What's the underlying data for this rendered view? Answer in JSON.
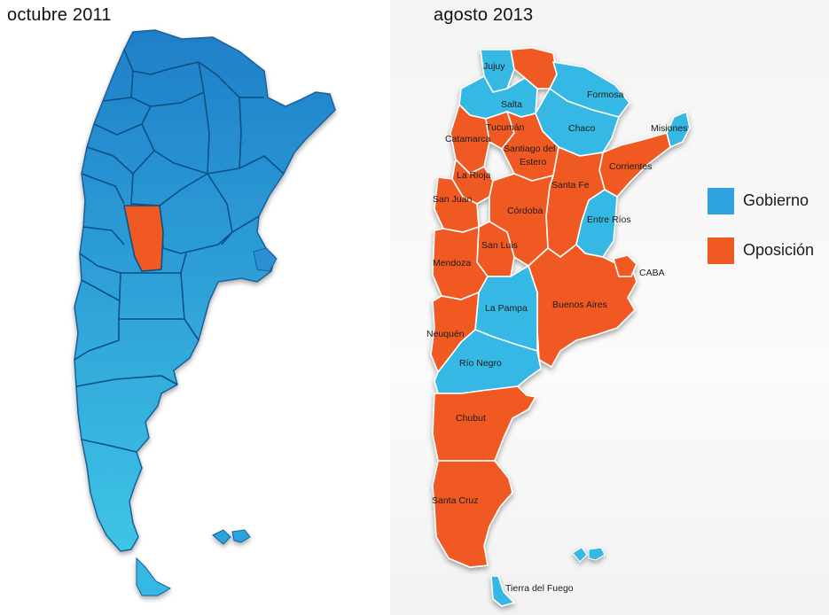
{
  "maps": {
    "left": {
      "title": "octubre 2011"
    },
    "right": {
      "title": "agosto 2013",
      "labels": {
        "jujuy": "Jujuy",
        "salta": "Salta",
        "formosa": "Formosa",
        "chaco": "Chaco",
        "misiones": "Misiones",
        "tucuman": "Tucumán",
        "catamarca": "Catamarca",
        "santiago_1": "Santiago del",
        "santiago_2": "Estero",
        "corrientes": "Corrientes",
        "la_rioja": "La Rioja",
        "santa_fe": "Santa Fe",
        "san_juan": "San Juan",
        "cordoba": "Córdoba",
        "entre_rios": "Entre Ríos",
        "san_luis": "San Luis",
        "mendoza": "Mendoza",
        "caba": "CABA",
        "la_pampa": "La Pampa",
        "buenos_aires": "Buenos Aires",
        "neuquen": "Neuquén",
        "rio_negro": "Río Negro",
        "chubut": "Chubut",
        "santa_cruz": "Santa Cruz",
        "tierra_del_fuego": "Tierra del Fuego"
      }
    }
  },
  "legend": {
    "gobierno": {
      "label": "Gobierno",
      "color": "#2ea3dd"
    },
    "oposicion": {
      "label": "Oposición",
      "color": "#f05a22"
    }
  },
  "colors": {
    "blue_dark": "#1f7fc9",
    "blue_light": "#35b8e3",
    "orange": "#f05a22",
    "border": "#ffffff"
  }
}
